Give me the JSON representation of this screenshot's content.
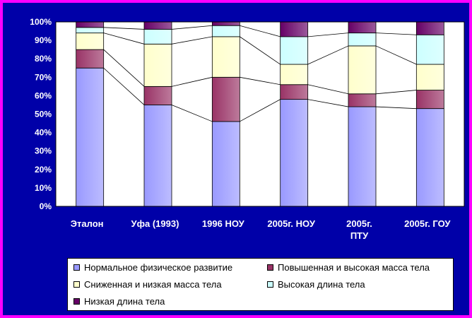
{
  "chart_data": {
    "type": "bar",
    "stacked": true,
    "percent": true,
    "categories": [
      "Эталон",
      "Уфа (1993)",
      "1996 НОУ",
      "2005г. НОУ",
      "2005г. ПТУ",
      "2005г.   ГОУ"
    ],
    "category_label_lines": [
      [
        "Эталон"
      ],
      [
        "Уфа (1993)"
      ],
      [
        "1996 НОУ"
      ],
      [
        "2005г. НОУ"
      ],
      [
        "2005г.",
        "ПТУ"
      ],
      [
        "2005г.   ГОУ"
      ]
    ],
    "series": [
      {
        "name": "Нормальное физическое развитие",
        "color": "#9999ff",
        "values": [
          75,
          55,
          46,
          58,
          54,
          53
        ]
      },
      {
        "name": "Повышенная и высокая масса тела",
        "color": "#993366",
        "values": [
          10,
          10,
          24,
          8,
          7,
          10
        ]
      },
      {
        "name": "Сниженная и низкая масса тела",
        "color": "#ffffcc",
        "values": [
          9,
          23,
          22,
          11,
          26,
          14
        ]
      },
      {
        "name": "Высокая длина тела",
        "color": "#ccffff",
        "values": [
          3,
          8,
          6,
          15,
          7,
          16
        ]
      },
      {
        "name": "Низкая длина тела",
        "color": "#660066",
        "values": [
          3,
          4,
          2,
          8,
          6,
          7
        ]
      }
    ],
    "yticks": [
      "0%",
      "10%",
      "20%",
      "30%",
      "40%",
      "50%",
      "60%",
      "70%",
      "80%",
      "90%",
      "100%"
    ],
    "ylim": [
      0,
      100
    ],
    "series_lines": true,
    "legend_position": "bottom",
    "title": "",
    "xlabel": "",
    "ylabel": ""
  },
  "colors": {
    "background": "#0000a8",
    "border": "#ff00ff",
    "plot_area": "#ffffff",
    "text": "#ffffff"
  }
}
